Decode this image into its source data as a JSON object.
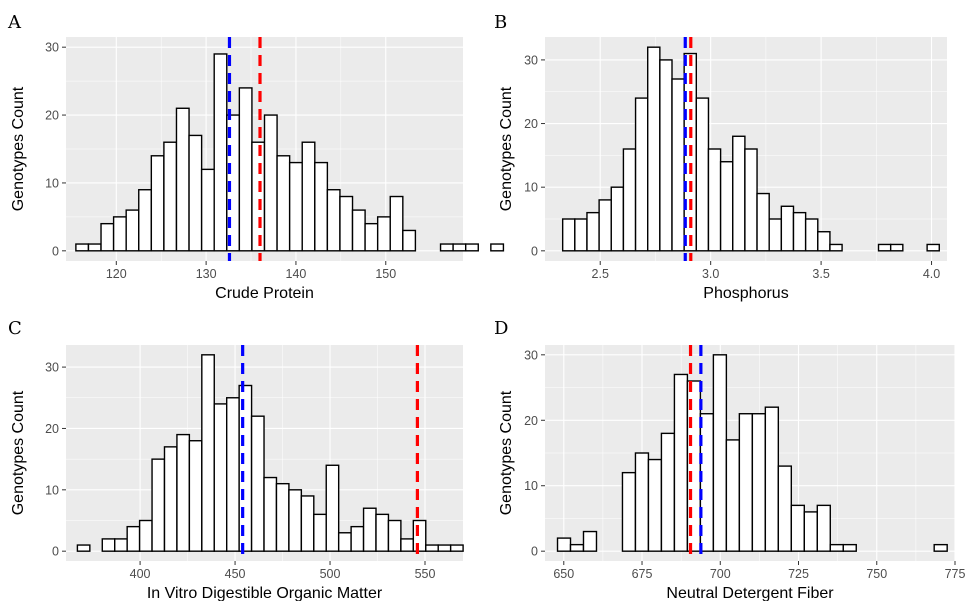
{
  "chart_data": [
    {
      "panel": "A",
      "type": "bar",
      "xlabel": "Crude Protein",
      "ylabel": "Genotypes Count",
      "xlim": [
        114.4,
        158.6
      ],
      "ylim": [
        -1.5,
        31.5
      ],
      "xticks": [
        120,
        130,
        140,
        150
      ],
      "yticks": [
        0,
        10,
        20,
        30
      ],
      "bins": {
        "start": 115.5,
        "width": 1.4,
        "values": [
          1,
          1,
          4,
          5,
          6,
          9,
          14,
          16,
          21,
          17,
          12,
          29,
          20,
          24,
          16,
          20,
          14,
          13,
          16,
          13,
          9,
          8,
          6,
          4,
          5,
          8,
          3,
          0,
          0,
          1,
          1,
          1,
          0,
          1
        ]
      },
      "vlines": [
        {
          "x": 132.6,
          "color": "#0000ff"
        },
        {
          "x": 136.0,
          "color": "#ff0000"
        }
      ]
    },
    {
      "panel": "B",
      "type": "bar",
      "xlabel": "Phosphorus",
      "ylabel": "Genotypes Count",
      "xlim": [
        2.25,
        4.07
      ],
      "ylim": [
        -1.6,
        33.6
      ],
      "xticks": [
        2.5,
        3.0,
        3.5,
        4.0
      ],
      "yticks": [
        0,
        10,
        20,
        30
      ],
      "bins": {
        "start": 2.33,
        "width": 0.055,
        "values": [
          5,
          5,
          6,
          8,
          10,
          16,
          24,
          32,
          30,
          27,
          31,
          24,
          16,
          14,
          18,
          16,
          9,
          5,
          7,
          6,
          5,
          3,
          1,
          0,
          0,
          0,
          1,
          1,
          0,
          0,
          1
        ]
      },
      "vlines": [
        {
          "x": 2.885,
          "color": "#0000ff"
        },
        {
          "x": 2.91,
          "color": "#ff0000"
        }
      ]
    },
    {
      "panel": "C",
      "type": "bar",
      "xlabel": "In Vitro Digestible Organic Matter",
      "ylabel": "Genotypes Count",
      "xlim": [
        361,
        570
      ],
      "ylim": [
        -1.6,
        33.6
      ],
      "xticks": [
        400,
        450,
        500,
        550
      ],
      "yticks": [
        0,
        10,
        20,
        30
      ],
      "bins": {
        "start": 367.0,
        "width": 6.55,
        "values": [
          1,
          0,
          2,
          2,
          4,
          5,
          15,
          17,
          19,
          18,
          32,
          24,
          25,
          27,
          22,
          12,
          11,
          10,
          9,
          6,
          14,
          3,
          4,
          7,
          6,
          5,
          2,
          5,
          1,
          1,
          1
        ]
      },
      "vlines": [
        {
          "x": 454.0,
          "color": "#0000ff"
        },
        {
          "x": 546.0,
          "color": "#ff0000"
        }
      ]
    },
    {
      "panel": "D",
      "type": "bar",
      "xlabel": "Neutral Detergent Fiber",
      "ylabel": "Genotypes Count",
      "xlim": [
        644,
        775
      ],
      "ylim": [
        -1.5,
        31.5
      ],
      "xticks": [
        650,
        675,
        700,
        725,
        750,
        775
      ],
      "yticks": [
        0,
        10,
        20,
        30
      ],
      "bins": {
        "start": 648.0,
        "width": 4.15,
        "values": [
          2,
          1,
          3,
          0,
          0,
          12,
          15,
          14,
          18,
          27,
          26,
          21,
          30,
          17,
          21,
          21,
          22,
          13,
          7,
          6,
          7,
          1,
          1,
          0,
          0,
          0,
          0,
          0,
          0,
          1
        ]
      },
      "vlines": [
        {
          "x": 690.5,
          "color": "#ff0000"
        },
        {
          "x": 693.8,
          "color": "#0000ff"
        }
      ]
    }
  ]
}
